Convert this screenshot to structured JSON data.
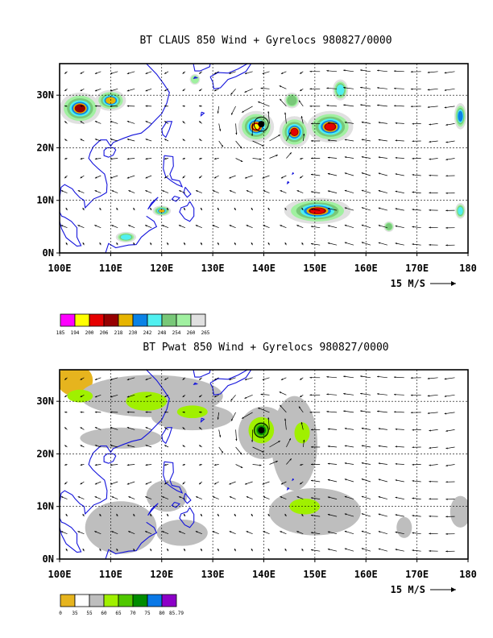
{
  "chart_data": [
    {
      "type": "heatmap",
      "title": "BT CLAUS 850 Wind + Gyrelocs 980827/0000",
      "x_ticks": [
        "100E",
        "110E",
        "120E",
        "130E",
        "140E",
        "150E",
        "160E",
        "170E",
        "180"
      ],
      "y_ticks": [
        "0N",
        "10N",
        "20N",
        "30N"
      ],
      "xlim": [
        100,
        180
      ],
      "ylim": [
        0,
        36
      ],
      "vector_scale_label": "15 M/S",
      "grid": true,
      "colorbar": {
        "labels": [
          "185",
          "194",
          "200",
          "206",
          "218",
          "230",
          "242",
          "248",
          "254",
          "260",
          "265"
        ],
        "colors": [
          "#ff00ff",
          "#ffff00",
          "#e60000",
          "#960000",
          "#e6b400",
          "#0a82e6",
          "#50f0f0",
          "#78c878",
          "#a0f0a0",
          "#e0e0e0"
        ]
      },
      "cyclone_center": [
        139.5,
        24.5
      ],
      "cloud_regions": [
        {
          "lon": 138.5,
          "lat": 24.0,
          "rx": 3.5,
          "ry": 3.0,
          "level": 9
        },
        {
          "lon": 146.0,
          "lat": 23.0,
          "rx": 3.0,
          "ry": 3.0,
          "level": 8
        },
        {
          "lon": 153.0,
          "lat": 24.0,
          "rx": 4.5,
          "ry": 3.0,
          "level": 8
        },
        {
          "lon": 150.5,
          "lat": 8.0,
          "rx": 6.5,
          "ry": 2.5,
          "level": 8
        },
        {
          "lon": 104.0,
          "lat": 27.5,
          "rx": 4.0,
          "ry": 3.0,
          "level": 7
        },
        {
          "lon": 110.0,
          "lat": 29.0,
          "rx": 3.0,
          "ry": 2.0,
          "level": 6
        },
        {
          "lon": 120.0,
          "lat": 8.0,
          "rx": 1.8,
          "ry": 1.0,
          "level": 6
        },
        {
          "lon": 113.0,
          "lat": 3.0,
          "rx": 2.0,
          "ry": 1.0,
          "level": 4
        },
        {
          "lon": 155.0,
          "lat": 31.0,
          "rx": 1.5,
          "ry": 2.0,
          "level": 4
        },
        {
          "lon": 178.5,
          "lat": 26.0,
          "rx": 1.2,
          "ry": 2.5,
          "level": 5
        },
        {
          "lon": 178.5,
          "lat": 8.0,
          "rx": 1.0,
          "ry": 1.5,
          "level": 4
        },
        {
          "lon": 164.5,
          "lat": 5.0,
          "rx": 1.0,
          "ry": 1.0,
          "level": 3
        },
        {
          "lon": 126.5,
          "lat": 33.0,
          "rx": 1.0,
          "ry": 1.0,
          "level": 2
        },
        {
          "lon": 145.5,
          "lat": 29.0,
          "rx": 1.5,
          "ry": 1.5,
          "level": 3
        }
      ]
    },
    {
      "type": "heatmap",
      "title": "BT Pwat 850 Wind + Gyrelocs 980827/0000",
      "x_ticks": [
        "100E",
        "110E",
        "120E",
        "130E",
        "140E",
        "150E",
        "160E",
        "170E",
        "180"
      ],
      "y_ticks": [
        "0N",
        "10N",
        "20N",
        "30N"
      ],
      "xlim": [
        100,
        180
      ],
      "ylim": [
        0,
        36
      ],
      "vector_scale_label": "15 M/S",
      "grid": true,
      "colorbar": {
        "labels": [
          "0",
          "35",
          "55",
          "60",
          "65",
          "70",
          "75",
          "80",
          "85.79"
        ],
        "colors": [
          "#e6b41e",
          "#ffffff",
          "#bebebe",
          "#a0f000",
          "#50c800",
          "#008c00",
          "#0a78e6",
          "#8c00c8"
        ]
      },
      "cyclone_center": [
        139.5,
        24.5
      ],
      "moist_regions": [
        {
          "lon": 140.0,
          "lat": 24.0,
          "rx": 5.0,
          "ry": 5.0,
          "level": 2
        },
        {
          "lon": 146.0,
          "lat": 22.0,
          "rx": 4.5,
          "ry": 9.0,
          "level": 2
        },
        {
          "lon": 150.0,
          "lat": 9.0,
          "rx": 9.0,
          "ry": 4.5,
          "level": 2
        },
        {
          "lon": 118.0,
          "lat": 31.0,
          "rx": 14.0,
          "ry": 4.0,
          "level": 2
        },
        {
          "lon": 126.0,
          "lat": 27.0,
          "rx": 8.0,
          "ry": 2.5,
          "level": 2
        },
        {
          "lon": 112.0,
          "lat": 23.0,
          "rx": 8.0,
          "ry": 2.0,
          "level": 2
        },
        {
          "lon": 112.0,
          "lat": 6.0,
          "rx": 7.0,
          "ry": 5.0,
          "level": 2
        },
        {
          "lon": 121.0,
          "lat": 12.0,
          "rx": 4.0,
          "ry": 3.0,
          "level": 2
        },
        {
          "lon": 124.0,
          "lat": 5.0,
          "rx": 5.0,
          "ry": 2.5,
          "level": 2
        },
        {
          "lon": 178.5,
          "lat": 9.0,
          "rx": 2.0,
          "ry": 3.0,
          "level": 2
        },
        {
          "lon": 167.5,
          "lat": 6.0,
          "rx": 1.5,
          "ry": 2.0,
          "level": 2
        },
        {
          "lon": 117.0,
          "lat": 30.0,
          "rx": 4.0,
          "ry": 1.8,
          "level": 3
        },
        {
          "lon": 104.0,
          "lat": 31.0,
          "rx": 2.5,
          "ry": 1.2,
          "level": 3
        },
        {
          "lon": 126.0,
          "lat": 28.0,
          "rx": 3.0,
          "ry": 1.2,
          "level": 3
        },
        {
          "lon": 148.0,
          "lat": 10.0,
          "rx": 3.0,
          "ry": 1.5,
          "level": 3
        },
        {
          "lon": 147.5,
          "lat": 24.0,
          "rx": 1.5,
          "ry": 2.0,
          "level": 3
        },
        {
          "lon": 139.5,
          "lat": 24.5,
          "rx": 2.5,
          "ry": 2.5,
          "level": 3
        },
        {
          "lon": 139.5,
          "lat": 24.5,
          "rx": 1.5,
          "ry": 1.5,
          "level": 4
        },
        {
          "lon": 139.5,
          "lat": 24.5,
          "rx": 0.9,
          "ry": 0.9,
          "level": 5
        }
      ],
      "dry_regions": [
        {
          "lon": 103.0,
          "lat": 34.0,
          "rx": 3.5,
          "ry": 3.0
        }
      ]
    }
  ]
}
